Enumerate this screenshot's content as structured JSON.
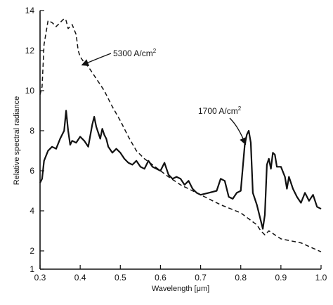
{
  "chart_data": {
    "type": "line",
    "xlabel": "Wavelength [μm]",
    "ylabel": "Relative spectral radiance",
    "xlim": [
      0.3,
      1.0
    ],
    "ylim": [
      1,
      14
    ],
    "grid": false,
    "x_ticks": [
      "0.3",
      "0.4",
      "0.5",
      "0.6",
      "0.7",
      "0.8",
      "0.9",
      "1.0"
    ],
    "y_ticks": [
      "1",
      "2",
      "4",
      "6",
      "8",
      "10",
      "12",
      "14"
    ],
    "series": [
      {
        "name": "5300 A/cm²",
        "label_main": "5300 A/cm",
        "label_sup": "2",
        "style": "dashed",
        "x": [
          0.3,
          0.305,
          0.31,
          0.32,
          0.33,
          0.34,
          0.35,
          0.36,
          0.365,
          0.37,
          0.38,
          0.39,
          0.395,
          0.4,
          0.41,
          0.42,
          0.43,
          0.44,
          0.45,
          0.46,
          0.47,
          0.48,
          0.5,
          0.52,
          0.54,
          0.56,
          0.58,
          0.6,
          0.62,
          0.65,
          0.7,
          0.75,
          0.8,
          0.82,
          0.84,
          0.85,
          0.86,
          0.87,
          0.9,
          0.95,
          1.0
        ],
        "y": [
          9.8,
          10.2,
          12.3,
          13.5,
          13.4,
          13.2,
          13.4,
          13.6,
          13.5,
          13.1,
          13.3,
          12.8,
          12.0,
          11.7,
          11.4,
          11.2,
          10.9,
          10.6,
          10.3,
          10.0,
          9.6,
          9.2,
          8.5,
          7.7,
          7.0,
          6.6,
          6.3,
          6.0,
          5.7,
          5.3,
          4.8,
          4.3,
          3.9,
          3.6,
          3.3,
          3.0,
          2.8,
          3.0,
          2.6,
          2.4,
          1.95
        ]
      },
      {
        "name": "1700 A/cm²",
        "label_main": "1700 A/cm",
        "label_sup": "2",
        "style": "solid",
        "x": [
          0.3,
          0.305,
          0.31,
          0.32,
          0.33,
          0.34,
          0.35,
          0.36,
          0.365,
          0.37,
          0.375,
          0.38,
          0.39,
          0.4,
          0.41,
          0.42,
          0.43,
          0.435,
          0.44,
          0.45,
          0.455,
          0.46,
          0.465,
          0.47,
          0.48,
          0.49,
          0.5,
          0.51,
          0.52,
          0.53,
          0.54,
          0.55,
          0.56,
          0.57,
          0.58,
          0.59,
          0.6,
          0.61,
          0.62,
          0.63,
          0.64,
          0.65,
          0.66,
          0.67,
          0.68,
          0.69,
          0.7,
          0.72,
          0.74,
          0.75,
          0.76,
          0.77,
          0.78,
          0.79,
          0.8,
          0.81,
          0.815,
          0.82,
          0.825,
          0.83,
          0.84,
          0.85,
          0.855,
          0.86,
          0.865,
          0.87,
          0.875,
          0.88,
          0.885,
          0.89,
          0.9,
          0.91,
          0.915,
          0.92,
          0.93,
          0.94,
          0.95,
          0.96,
          0.97,
          0.98,
          0.99,
          1.0
        ],
        "y": [
          5.4,
          5.6,
          6.5,
          7.0,
          7.2,
          7.1,
          7.6,
          8.0,
          9.0,
          8.0,
          7.3,
          7.5,
          7.4,
          7.7,
          7.5,
          7.2,
          8.3,
          8.7,
          8.2,
          7.6,
          8.1,
          7.8,
          7.6,
          7.2,
          6.9,
          7.1,
          6.9,
          6.6,
          6.4,
          6.3,
          6.5,
          6.2,
          6.1,
          6.5,
          6.2,
          6.1,
          6.0,
          6.4,
          5.8,
          5.6,
          5.7,
          5.6,
          5.3,
          5.5,
          5.1,
          4.9,
          4.8,
          4.9,
          5.0,
          5.6,
          5.5,
          4.7,
          4.6,
          4.9,
          5.0,
          7.3,
          7.8,
          8.0,
          7.4,
          4.9,
          4.3,
          3.5,
          3.1,
          3.8,
          6.3,
          6.6,
          6.1,
          6.9,
          6.8,
          6.2,
          6.2,
          5.7,
          5.1,
          5.7,
          5.1,
          4.7,
          4.4,
          4.9,
          4.5,
          4.8,
          4.2,
          4.1
        ]
      }
    ]
  }
}
